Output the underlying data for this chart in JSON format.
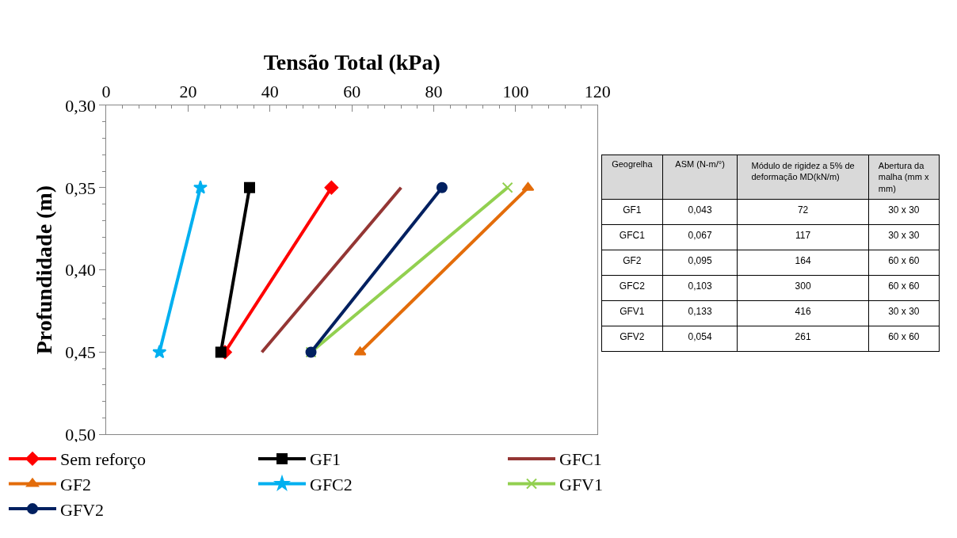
{
  "chart_data": [
    {
      "type": "line",
      "xlabel": "Tensão Total (kPa)",
      "ylabel": "Profundidade (m)",
      "xlim": [
        0,
        120
      ],
      "xticks": [
        0,
        20,
        40,
        60,
        80,
        100,
        120
      ],
      "ylim": [
        0.5,
        0.3
      ],
      "yticks": [
        {
          "value": 0.3,
          "label": "0,30"
        },
        {
          "value": 0.35,
          "label": "0,35"
        },
        {
          "value": 0.4,
          "label": "0,40"
        },
        {
          "value": 0.45,
          "label": "0,45"
        },
        {
          "value": 0.5,
          "label": "0,50"
        }
      ],
      "legend": "bottom",
      "series": [
        {
          "name": "Sem reforço",
          "color": "#ff0000",
          "marker": "diamond",
          "x": [
            55,
            29
          ],
          "values": [
            0.35,
            0.45
          ]
        },
        {
          "name": "GF1",
          "color": "#000000",
          "marker": "square",
          "x": [
            35,
            28
          ],
          "values": [
            0.35,
            0.45
          ]
        },
        {
          "name": "GFC1",
          "color": "#943634",
          "marker": "none",
          "x": [
            72,
            38
          ],
          "values": [
            0.35,
            0.45
          ]
        },
        {
          "name": "GF2",
          "color": "#e36c0a",
          "marker": "triangle",
          "x": [
            103,
            62
          ],
          "values": [
            0.35,
            0.45
          ]
        },
        {
          "name": "GFC2",
          "color": "#00b0f0",
          "marker": "star",
          "x": [
            23,
            13
          ],
          "values": [
            0.35,
            0.45
          ]
        },
        {
          "name": "GFV1",
          "color": "#92d050",
          "marker": "cross",
          "x": [
            98,
            50
          ],
          "values": [
            0.35,
            0.45
          ]
        },
        {
          "name": "GFV2",
          "color": "#002060",
          "marker": "circle",
          "x": [
            82,
            50
          ],
          "values": [
            0.35,
            0.45
          ]
        }
      ]
    },
    {
      "type": "other",
      "annotations": [
        "Geogrelha",
        "ASM (N-m/°)",
        "Módulo de rigidez a 5% de deformação MD(kN/m)",
        "Abertura da malha (mm x mm)",
        "GF1",
        "0,043",
        "72",
        "30 x 30",
        "GFC1",
        "0,067",
        "117",
        "30 x 30",
        "GF2",
        "0,095",
        "164",
        "60 x 60",
        "GFC2",
        "0,103",
        "300",
        "60 x 60",
        "GFV1",
        "0,133",
        "416",
        "30 x 30",
        "GFV2",
        "0,054",
        "261",
        "60 x 60"
      ]
    }
  ]
}
